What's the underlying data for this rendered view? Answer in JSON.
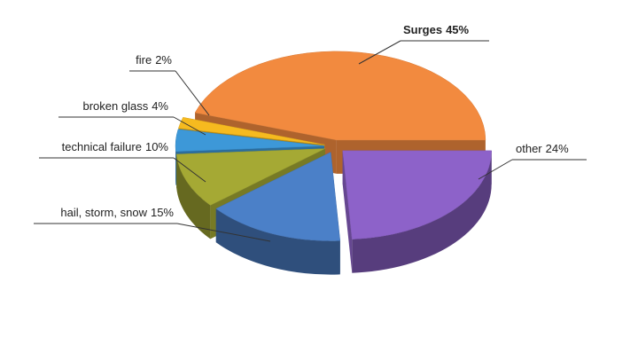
{
  "chart_data": {
    "type": "pie",
    "categories": [
      "Surges",
      "other",
      "hail, storm, snow",
      "technical failure",
      "broken glass",
      "fire"
    ],
    "values": [
      45,
      24,
      15,
      10,
      4,
      2
    ],
    "value_labels": [
      "45%",
      "24%",
      "15%",
      "10%",
      "4%",
      "2%"
    ],
    "colors": [
      "#f28a3f",
      "#8d62c9",
      "#4b80c8",
      "#a5a934",
      "#3d98d8",
      "#f6ba1f"
    ]
  }
}
